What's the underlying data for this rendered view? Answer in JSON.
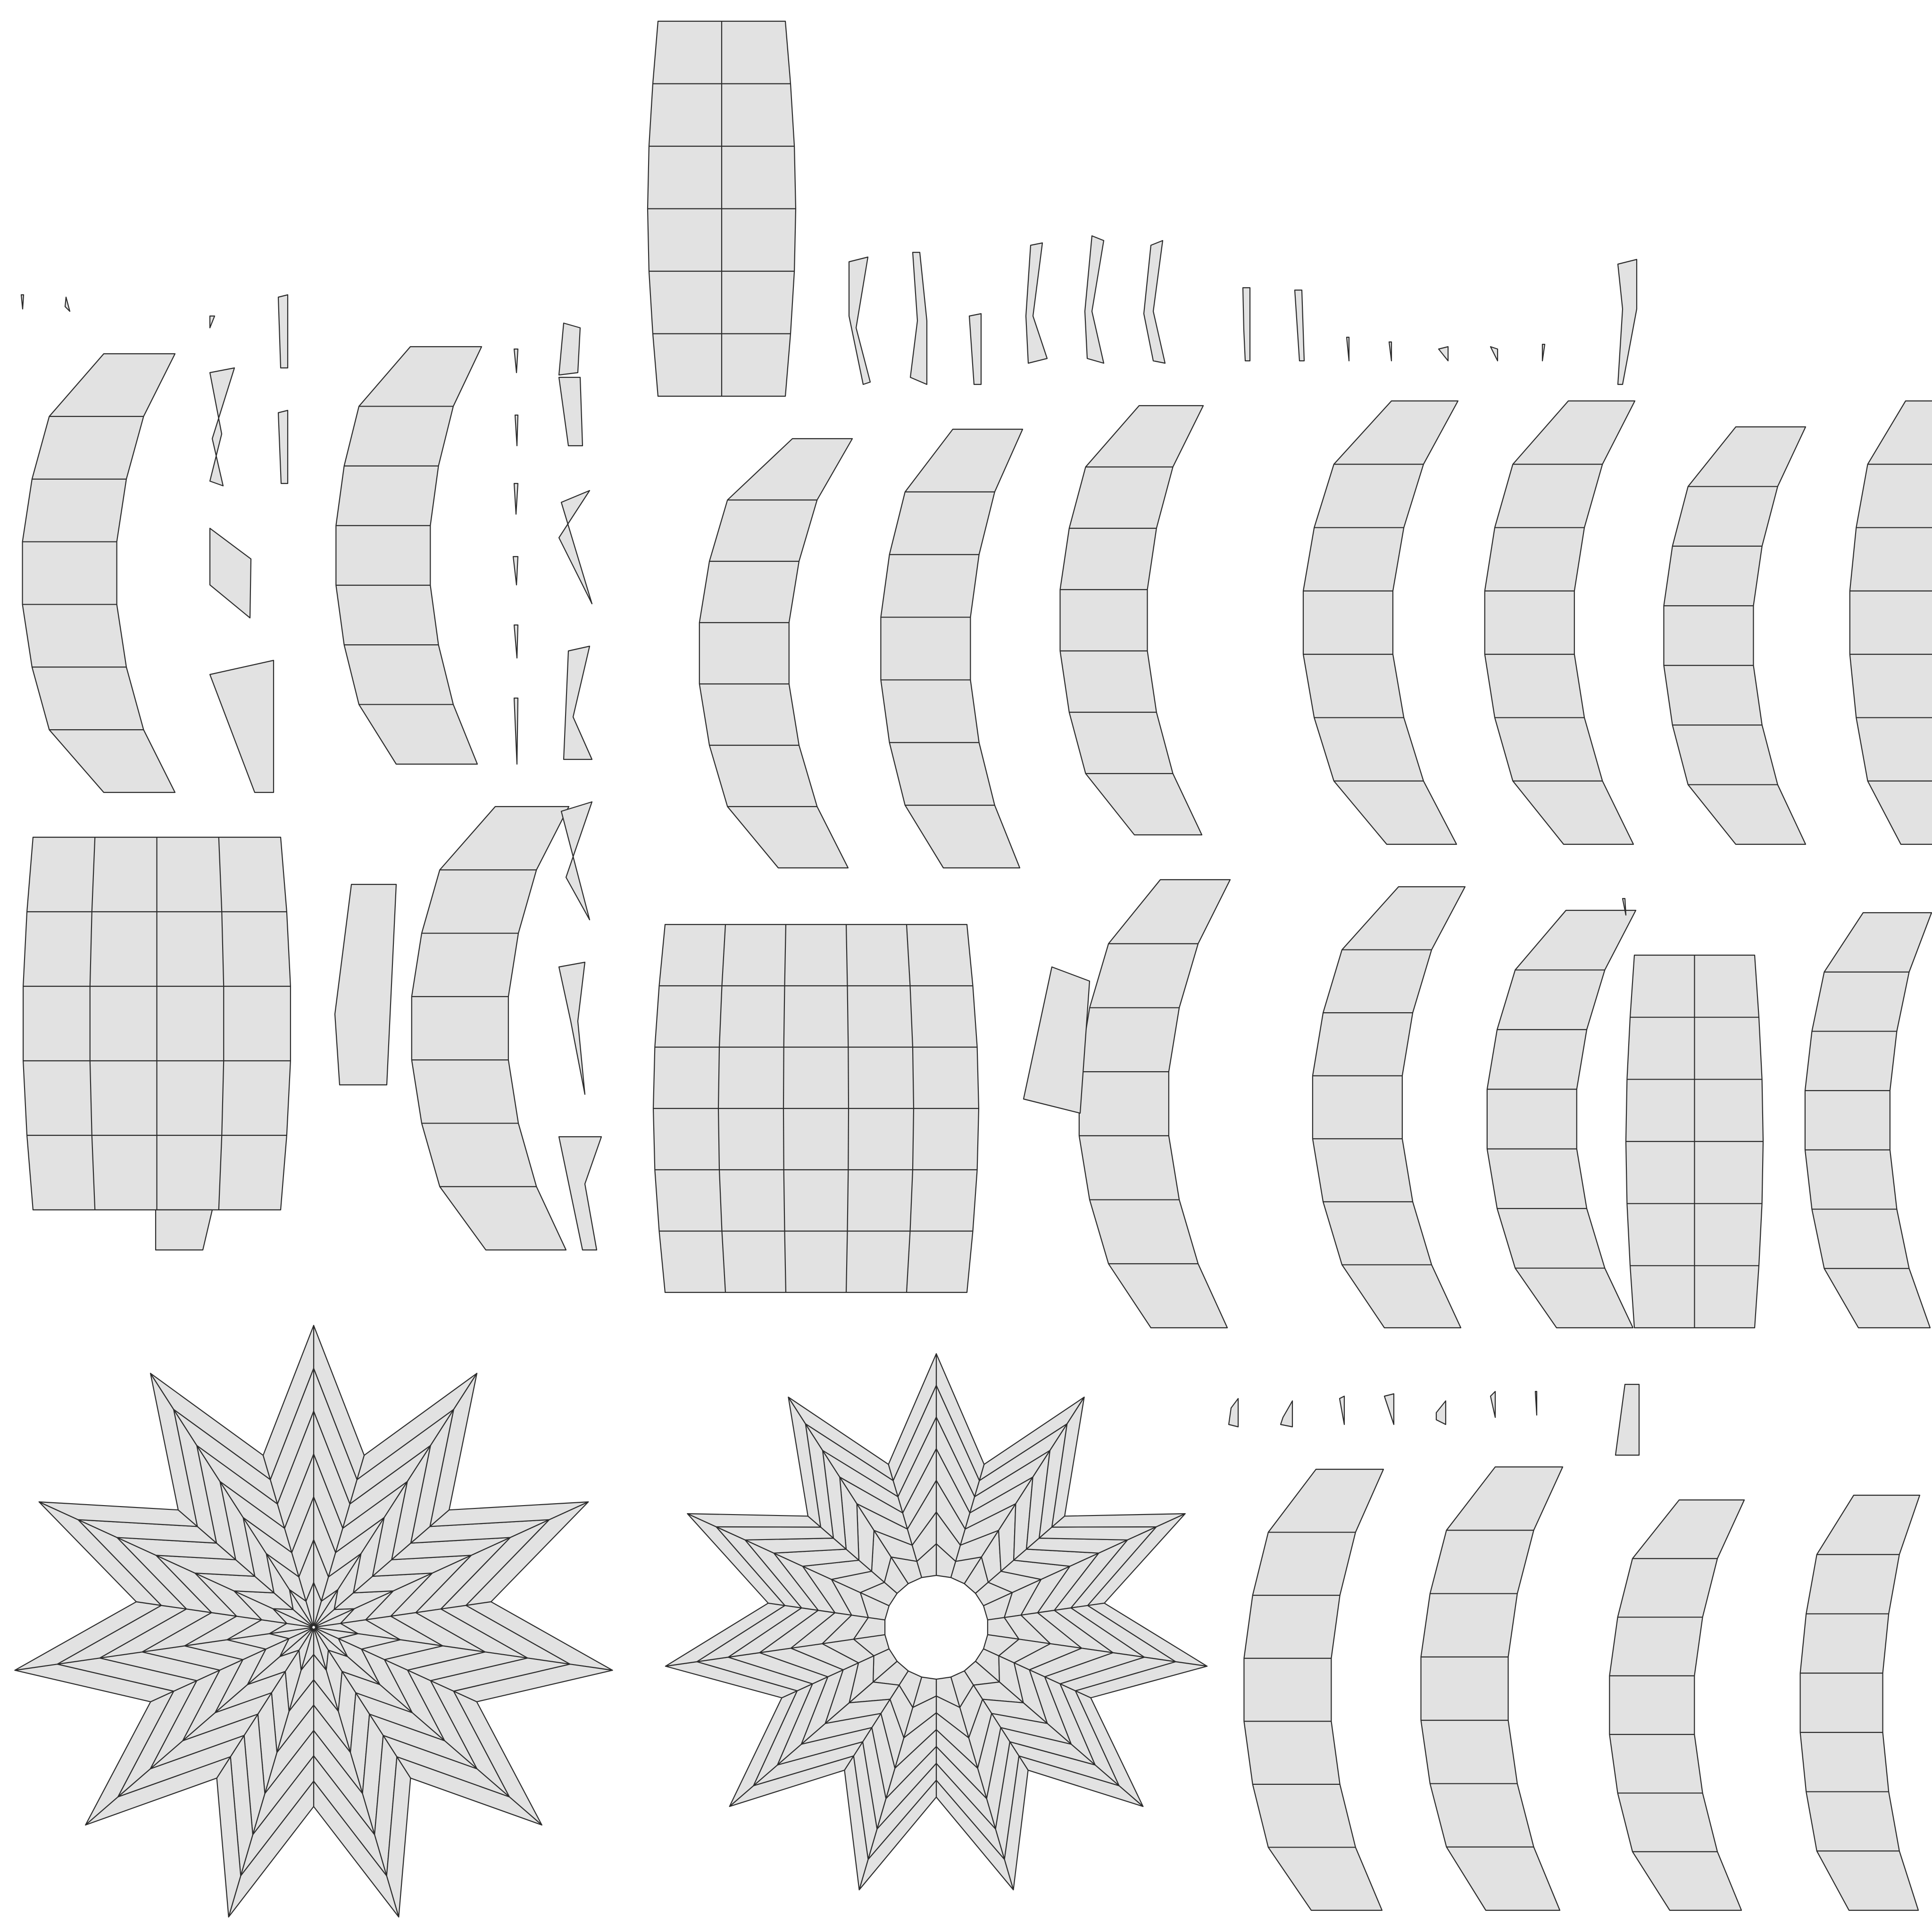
{
  "colors": {
    "background": "#ffffff",
    "face_fill": "#e2e2e2",
    "edge_stroke": "#2b2b2b"
  },
  "view": {
    "content": "uv-layout",
    "text": ""
  }
}
